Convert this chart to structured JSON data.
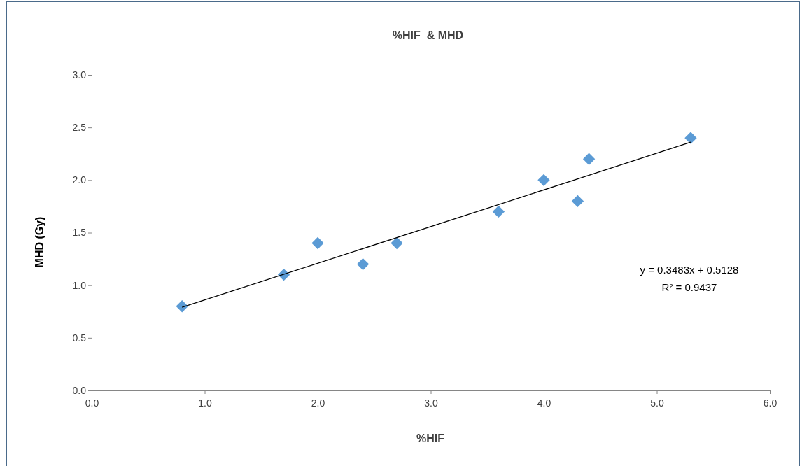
{
  "chart_data": {
    "type": "scatter",
    "title": "%HIF  & MHD",
    "xlabel": "%HIF",
    "ylabel": "MHD (Gy)",
    "xlim": [
      0,
      6
    ],
    "xticks": [
      {
        "value": 0,
        "label": "0.0"
      },
      {
        "value": 1,
        "label": "1.0"
      },
      {
        "value": 2,
        "label": "2.0"
      },
      {
        "value": 3,
        "label": "3.0"
      },
      {
        "value": 4,
        "label": "4.0"
      },
      {
        "value": 5,
        "label": "5.0"
      },
      {
        "value": 6,
        "label": "6.0"
      }
    ],
    "ylim": [
      0,
      3
    ],
    "yticks": [
      {
        "value": 0,
        "label": "0.0"
      },
      {
        "value": 0.5,
        "label": "0.5"
      },
      {
        "value": 1,
        "label": "1.0"
      },
      {
        "value": 1.5,
        "label": "1.5"
      },
      {
        "value": 2,
        "label": "2.0"
      },
      {
        "value": 2.5,
        "label": "2.5"
      },
      {
        "value": 3,
        "label": "3.0"
      }
    ],
    "grid": false,
    "marker": "diamond",
    "series": [
      {
        "color": "#5b9bd5",
        "x": [
          0.8,
          1.7,
          2.0,
          2.4,
          2.7,
          3.6,
          4.0,
          4.3,
          4.4,
          5.3
        ],
        "values": [
          0.8,
          1.1,
          1.4,
          1.2,
          1.4,
          1.7,
          2.0,
          1.8,
          2.2,
          2.4
        ]
      },
      {
        "type": "line",
        "color": "#000000",
        "marker": "none",
        "line_style": "solid",
        "x": [
          0.8,
          5.3
        ],
        "values": [
          0.79,
          2.36
        ]
      }
    ],
    "annotations": [
      "y = 0.3483x + 0.5128",
      "R² = 0.9437"
    ]
  }
}
